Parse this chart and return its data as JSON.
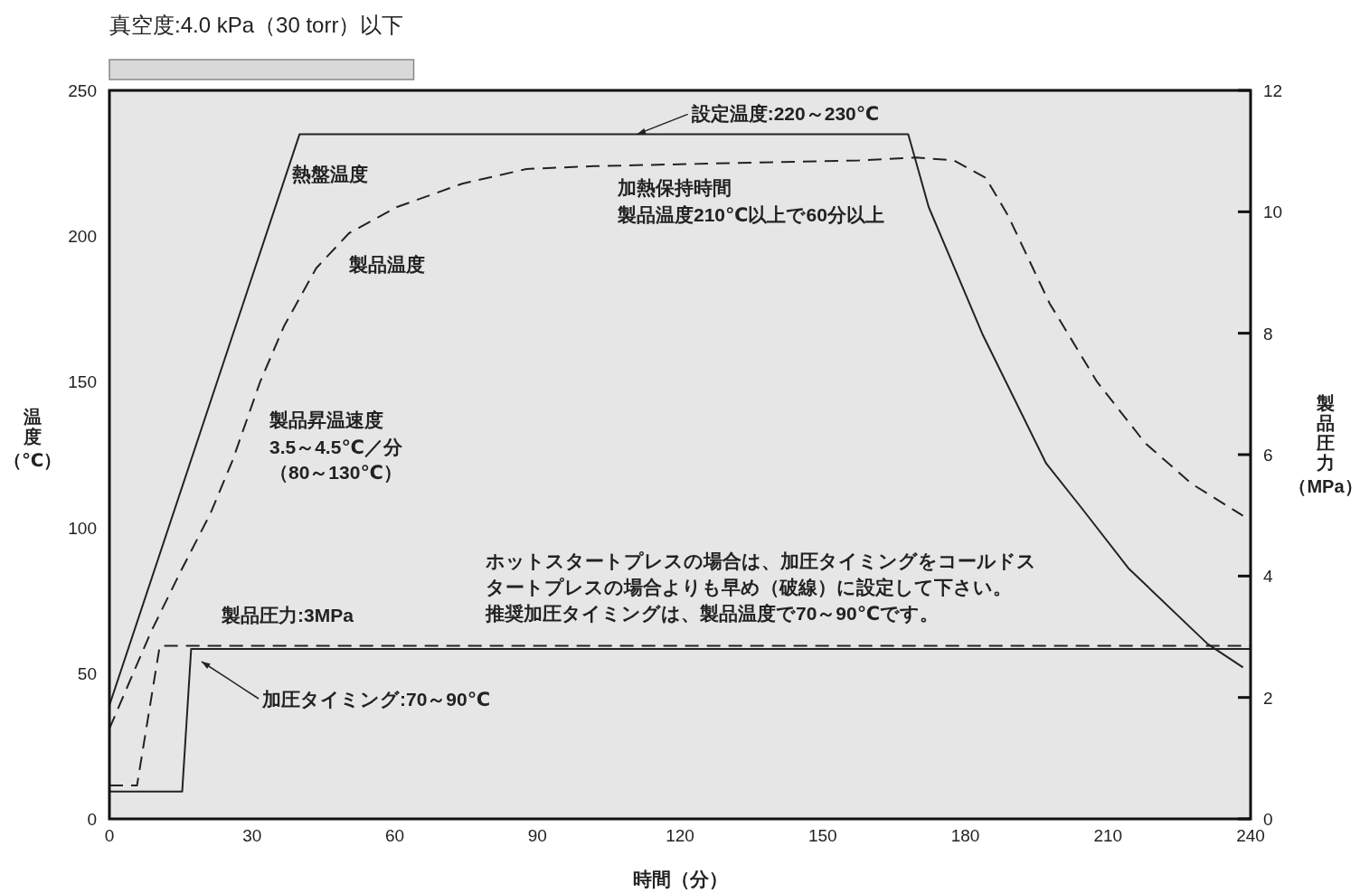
{
  "chart_data": [
    {
      "type": "bar",
      "orientation": "horizontal",
      "title": "真空度:4.0 kPa（30 torr）以下",
      "categories": [
        null
      ],
      "base": [
        0
      ],
      "values": [
        64
      ],
      "color": "#d9d9d9",
      "xlim": [
        0,
        240
      ],
      "tick_labels": false
    },
    {
      "type": "line",
      "xlabel": "時間（分）",
      "ylabel": "温度（℃）",
      "y2label": "製品圧力（MPa）",
      "xlim": [
        0,
        240
      ],
      "xticks": [
        0,
        30,
        60,
        90,
        120,
        150,
        180,
        210,
        240
      ],
      "ylim": [
        0,
        250
      ],
      "yticks": [
        0,
        50,
        100,
        150,
        200,
        250
      ],
      "y2lim": [
        0,
        12
      ],
      "y2ticks": [
        0,
        2,
        4,
        6,
        8,
        10,
        12
      ],
      "grid": false,
      "legend": false,
      "marker": "none",
      "series": [
        {
          "name": "熱盤温度",
          "color": "#222222",
          "line_style": "solid",
          "x": [
            0,
            40,
            168,
            172.3,
            183.7,
            197,
            204.3,
            214.3,
            231,
            238.4
          ],
          "values": [
            39,
            235,
            235,
            210,
            166,
            122,
            107,
            86,
            60,
            52
          ]
        },
        {
          "name": "製品温度",
          "color": "#222222",
          "line_style": "dashed",
          "x": [
            0,
            8.7,
            15,
            21.3,
            25.9,
            31.7,
            36.7,
            43.5,
            50.4,
            60.5,
            74.2,
            87.7,
            101.9,
            157.7,
            169.6,
            177.6,
            184.3,
            189,
            197.7,
            207.7,
            217.8,
            227.6,
            238.4
          ],
          "values": [
            31,
            64,
            85,
            105,
            123,
            150,
            169,
            189,
            201,
            210,
            218,
            223,
            224,
            226,
            227,
            226,
            220,
            207,
            177,
            150,
            129,
            115,
            104
          ]
        },
        {
          "color": "#222222",
          "line_style": "solid",
          "axis": "y2",
          "x": [
            0,
            15.3,
            17.2,
            240
          ],
          "values": [
            0.45,
            0.45,
            2.8,
            2.8
          ]
        },
        {
          "color": "#222222",
          "line_style": "dashed",
          "axis": "y2",
          "x": [
            0,
            5.8,
            10.6,
            240
          ],
          "values": [
            0.55,
            0.55,
            2.85,
            2.85
          ]
        }
      ],
      "annotations": [
        {
          "text": "設定温度:220～230℃",
          "x": 111,
          "y": 235
        },
        "加圧タイミング:70～90℃",
        "加熱保持時間",
        "製品温度210℃以上で60分以上",
        "製品昇温速度",
        "3.5～4.5℃／分",
        "（80～130℃）",
        "製品圧力:3MPa",
        "ホットスタートプレスの場合は、加圧タイミングをコールドスタートプレスの場合よりも早め（破線）に設定して下さい。推奨加圧タイミングは、製品温度で70～90℃です。"
      ]
    }
  ]
}
